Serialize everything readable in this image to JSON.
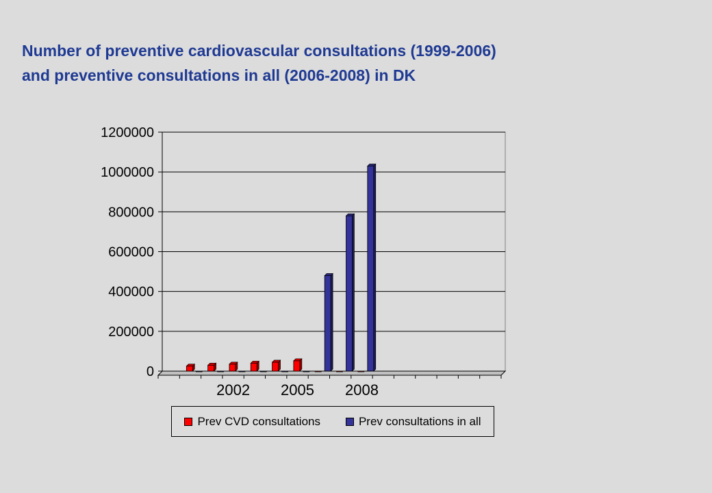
{
  "title": {
    "line1": "Number of preventive cardiovascular consultations (1999-2006)",
    "line2": "and preventive consultations in all (2006-2008) in DK"
  },
  "colors": {
    "background": "#dcdcdc",
    "title": "#1f3a93",
    "cvd": "#ff0000",
    "all": "#333399"
  },
  "chart_data": {
    "type": "bar",
    "title": "",
    "xlabel": "",
    "ylabel": "",
    "ylim": [
      0,
      1200000
    ],
    "y_ticks": [
      0,
      200000,
      400000,
      600000,
      800000,
      1000000,
      1200000
    ],
    "x_tick_labels": [
      {
        "year": "2002",
        "index": 3
      },
      {
        "year": "2005",
        "index": 6
      },
      {
        "year": "2008",
        "index": 9
      }
    ],
    "category_count": 16,
    "grid": true,
    "legend_position": "bottom",
    "series": [
      {
        "name": "Prev CVD consultations",
        "color": "#ff0000",
        "values": [
          null,
          25000,
          30000,
          35000,
          40000,
          45000,
          52000,
          0,
          0,
          0,
          null,
          null,
          null,
          null,
          null,
          null
        ]
      },
      {
        "name": "Prev consultations in all",
        "color": "#333399",
        "values": [
          null,
          0,
          0,
          0,
          0,
          0,
          0,
          480000,
          780000,
          1030000,
          null,
          null,
          null,
          null,
          null,
          null
        ]
      }
    ]
  }
}
